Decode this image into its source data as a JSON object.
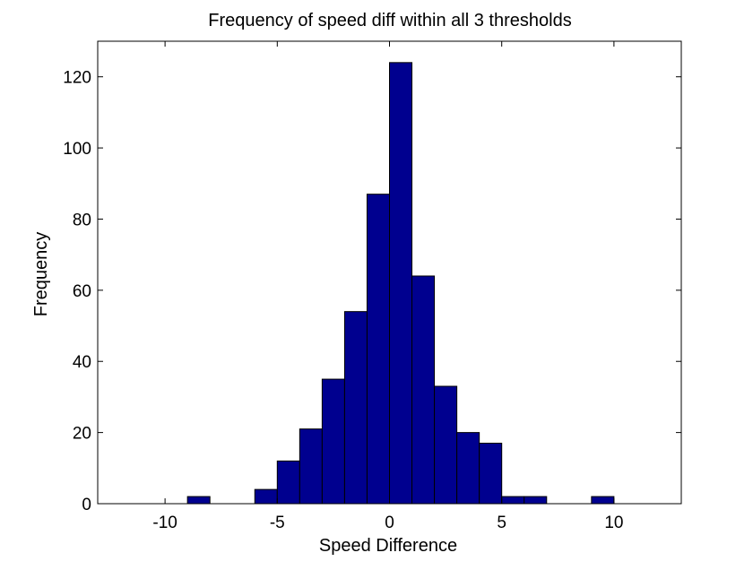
{
  "chart_data": {
    "type": "bar",
    "title": "Frequency of speed diff within all 3 thresholds",
    "xlabel": "Speed Difference",
    "ylabel": "Frequency",
    "xlim": [
      -13,
      13
    ],
    "ylim": [
      0,
      130
    ],
    "xticks": [
      -10,
      -5,
      0,
      5,
      10
    ],
    "yticks": [
      0,
      20,
      40,
      60,
      80,
      100,
      120
    ],
    "xtick_labels": [
      "-10",
      "-5",
      "0",
      "5",
      "10"
    ],
    "ytick_labels": [
      "0",
      "20",
      "40",
      "60",
      "80",
      "100",
      "120"
    ],
    "bar_color": "#00008f",
    "grid": false,
    "bins": [
      {
        "x0": -9,
        "x1": -8,
        "value": 2
      },
      {
        "x0": -8,
        "x1": -7,
        "value": 0
      },
      {
        "x0": -7,
        "x1": -6,
        "value": 0
      },
      {
        "x0": -6,
        "x1": -5,
        "value": 4
      },
      {
        "x0": -5,
        "x1": -4,
        "value": 12
      },
      {
        "x0": -4,
        "x1": -3,
        "value": 21
      },
      {
        "x0": -3,
        "x1": -2,
        "value": 35
      },
      {
        "x0": -2,
        "x1": -1,
        "value": 54
      },
      {
        "x0": -1,
        "x1": 0,
        "value": 87
      },
      {
        "x0": 0,
        "x1": 1,
        "value": 124
      },
      {
        "x0": 1,
        "x1": 2,
        "value": 64
      },
      {
        "x0": 2,
        "x1": 3,
        "value": 33
      },
      {
        "x0": 3,
        "x1": 4,
        "value": 20
      },
      {
        "x0": 4,
        "x1": 5,
        "value": 17
      },
      {
        "x0": 5,
        "x1": 6,
        "value": 2
      },
      {
        "x0": 6,
        "x1": 7,
        "value": 2
      },
      {
        "x0": 7,
        "x1": 8,
        "value": 0
      },
      {
        "x0": 8,
        "x1": 9,
        "value": 0
      },
      {
        "x0": 9,
        "x1": 10,
        "value": 2
      }
    ]
  }
}
